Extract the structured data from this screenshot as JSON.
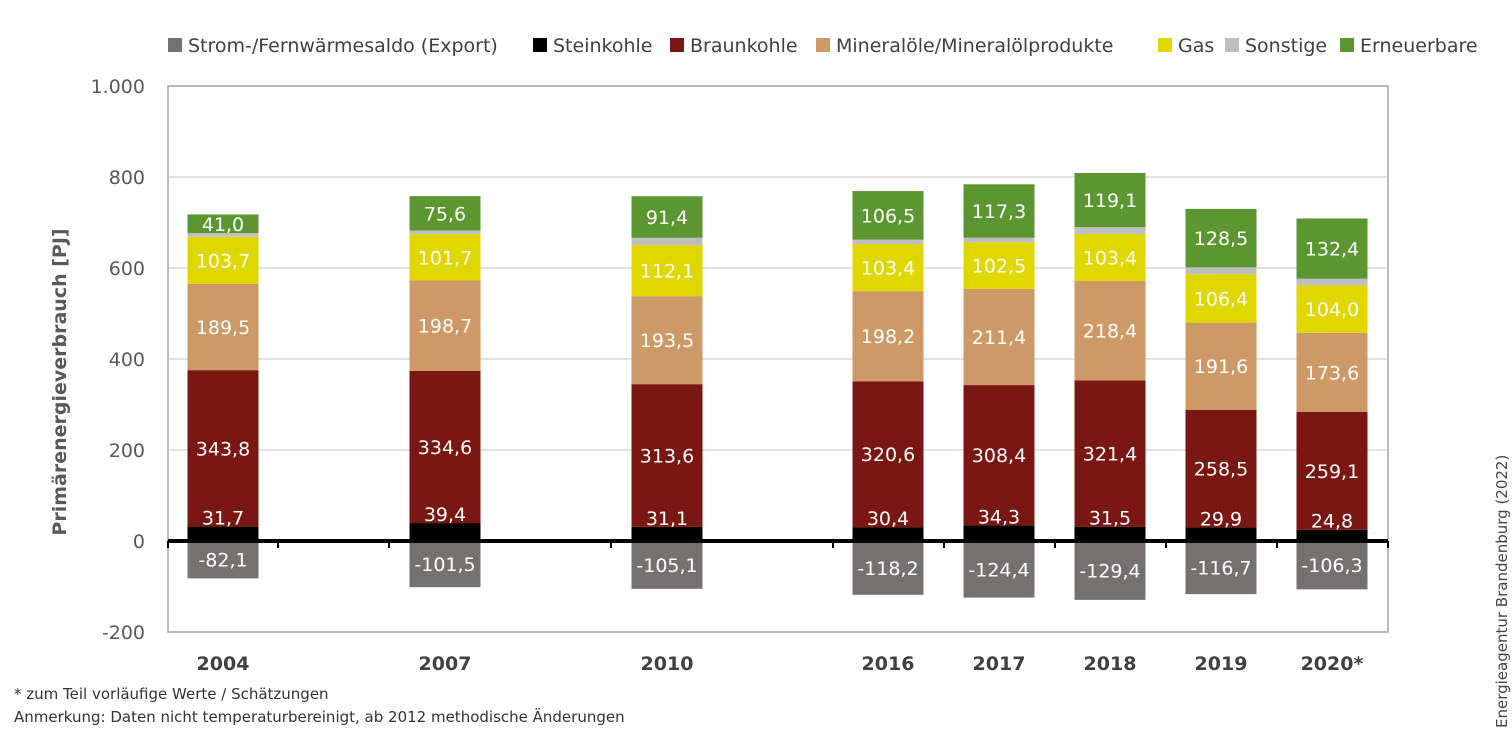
{
  "chart_data": {
    "type": "bar",
    "stacked": true,
    "ylabel": "Primärenergieverbrauch [PJ]",
    "ylim": [
      -200,
      1000
    ],
    "yticks": [
      -200,
      0,
      200,
      400,
      600,
      800,
      1000
    ],
    "ytick_labels": [
      "-200",
      "0",
      "200",
      "400",
      "600",
      "800",
      "1.000"
    ],
    "grid": true,
    "legend_position": "top",
    "categories": [
      "2004",
      "2007",
      "2010",
      "2016",
      "2017",
      "2018",
      "2019",
      "2020*"
    ],
    "series": [
      {
        "name": "Strom-/Fernwärmesaldo (Export)",
        "color": "#767171",
        "values": [
          -82.1,
          -101.5,
          -105.1,
          -118.2,
          -124.4,
          -129.4,
          -116.7,
          -106.3
        ],
        "labels": [
          "-82,1",
          "-101,5",
          "-105,1",
          "-118,2",
          "-124,4",
          "-129,4",
          "-116,7",
          "-106,3"
        ]
      },
      {
        "name": "Steinkohle",
        "color": "#000000",
        "values": [
          31.7,
          39.4,
          31.1,
          30.4,
          34.3,
          31.5,
          29.9,
          24.8
        ],
        "labels": [
          "31,7",
          "39,4",
          "31,1",
          "30,4",
          "34,3",
          "31,5",
          "29,9",
          "24,8"
        ]
      },
      {
        "name": "Braunkohle",
        "color": "#7B1712",
        "values": [
          343.8,
          334.6,
          313.6,
          320.6,
          308.4,
          321.4,
          258.5,
          259.1
        ],
        "labels": [
          "343,8",
          "334,6",
          "313,6",
          "320,6",
          "308,4",
          "321,4",
          "258,5",
          "259,1"
        ]
      },
      {
        "name": "Mineralöle/Mineralölprodukte",
        "color": "#CD9966",
        "values": [
          189.5,
          198.7,
          193.5,
          198.2,
          211.4,
          218.4,
          191.6,
          173.6
        ],
        "labels": [
          "189,5",
          "198,7",
          "193,5",
          "198,2",
          "211,4",
          "218,4",
          "191,6",
          "173,6"
        ]
      },
      {
        "name": "Gas",
        "color": "#E0D700",
        "values": [
          103.7,
          101.7,
          112.1,
          103.4,
          102.5,
          103.4,
          106.4,
          104.0
        ],
        "labels": [
          "103,7",
          "101,7",
          "112,1",
          "103,4",
          "102,5",
          "103,4",
          "106,4",
          "104,0"
        ]
      },
      {
        "name": "Sonstige",
        "color": "#BFBFBF",
        "values": [
          8,
          8,
          16,
          10,
          10,
          15,
          15,
          15
        ],
        "labels": []
      },
      {
        "name": "Erneuerbare",
        "color": "#5B9630",
        "values": [
          41.0,
          75.6,
          91.4,
          106.5,
          117.3,
          119.1,
          128.5,
          132.4
        ],
        "labels": [
          "41,0",
          "75,6",
          "91,4",
          "106,5",
          "117,3",
          "119,1",
          "128,5",
          "132,4"
        ]
      }
    ]
  },
  "notes": {
    "line1": "* zum Teil vorläufige Werte / Schätzungen",
    "line2": "Anmerkung: Daten nicht temperaturbereinigt, ab 2012 methodische Änderungen"
  },
  "source": "Energieagentur Brandenburg (2022)"
}
